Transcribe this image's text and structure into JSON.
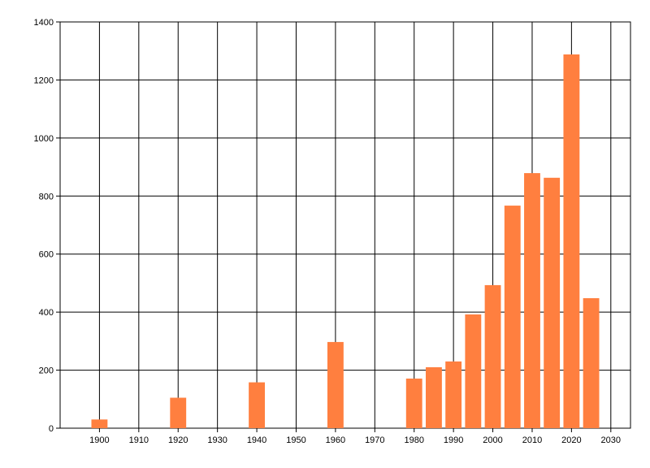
{
  "chart_data": {
    "type": "bar",
    "x": [
      1900,
      1920,
      1940,
      1960,
      1980,
      1985,
      1990,
      1995,
      2000,
      2005,
      2010,
      2015,
      2020,
      2025
    ],
    "values": [
      30,
      105,
      158,
      297,
      171,
      210,
      230,
      392,
      493,
      767,
      879,
      863,
      1288,
      448
    ],
    "color": "#ff7f3f",
    "xlim": [
      1890,
      2035
    ],
    "xticks": [
      1900,
      1910,
      1920,
      1930,
      1940,
      1950,
      1960,
      1970,
      1980,
      1990,
      2000,
      2010,
      2020,
      2030
    ],
    "ylim": [
      0,
      1400
    ],
    "yticks": [
      0,
      200,
      400,
      600,
      800,
      1000,
      1200,
      1400
    ],
    "grid": true
  }
}
